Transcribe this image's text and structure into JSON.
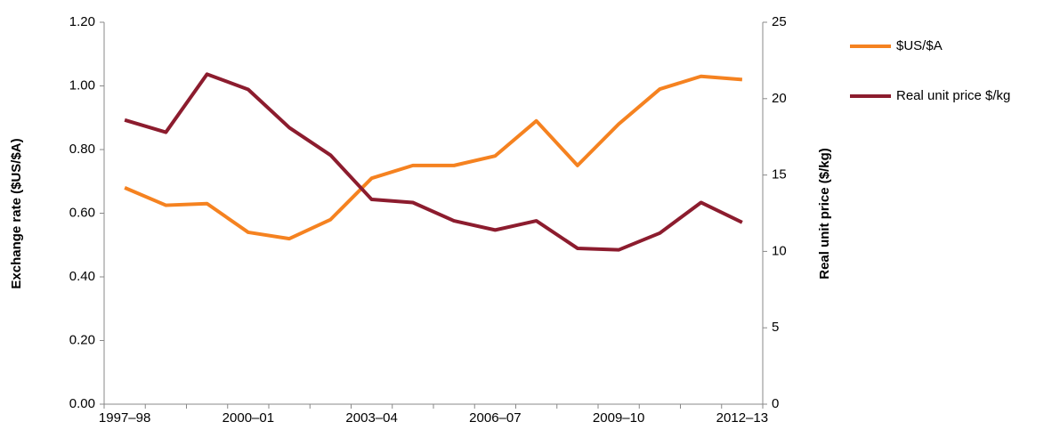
{
  "chart_data": {
    "type": "line",
    "y_label": "Exchange rate ($US/$A)",
    "y2_label": "Real unit price ($/kg)",
    "categories": [
      "1997–98",
      null,
      null,
      "2000–01",
      null,
      null,
      "2003–04",
      null,
      null,
      "2006–07",
      null,
      null,
      "2009–10",
      null,
      null,
      "2012–13"
    ],
    "series": [
      {
        "name": "$US/$A",
        "color": "#f58220",
        "values": [
          0.68,
          0.625,
          0.63,
          0.54,
          0.52,
          0.58,
          0.71,
          0.75,
          0.75,
          0.78,
          0.89,
          0.75,
          0.88,
          0.99,
          1.03,
          1.02
        ]
      },
      {
        "name": "Real unit price $/kg",
        "color": "#8c1c2e",
        "axis": "y2",
        "values": [
          18.6,
          17.8,
          21.6,
          20.6,
          18.1,
          16.3,
          13.4,
          13.2,
          12.0,
          11.4,
          12.0,
          10.2,
          10.1,
          11.2,
          13.2,
          11.9
        ]
      }
    ],
    "ylim": [
      0,
      1.2
    ],
    "yticks": [
      {
        "value": 0,
        "label": "0.00"
      },
      {
        "value": 0.2,
        "label": "0.20"
      },
      {
        "value": 0.4,
        "label": "0.40"
      },
      {
        "value": 0.6,
        "label": "0.60"
      },
      {
        "value": 0.8,
        "label": "0.80"
      },
      {
        "value": 1.0,
        "label": "1.00"
      },
      {
        "value": 1.2,
        "label": "1.20"
      }
    ],
    "y2lim": [
      0,
      25
    ],
    "y2ticks": [
      0,
      5,
      10,
      15,
      20,
      25
    ],
    "legend": "right",
    "grid": false
  }
}
